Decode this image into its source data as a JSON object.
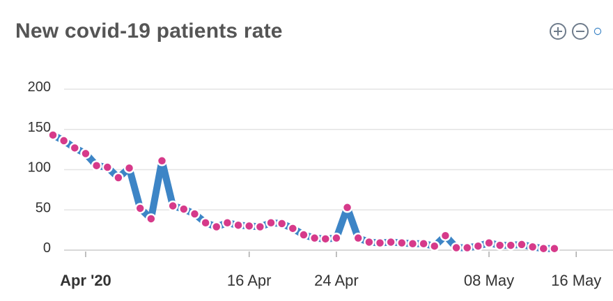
{
  "chart_data": {
    "type": "line",
    "title": "New covid-19 patients rate",
    "xlabel": "",
    "ylabel": "",
    "ylim": [
      0,
      200
    ],
    "y_ticks": [
      "0",
      "50",
      "100",
      "150",
      "200"
    ],
    "x_ticks": [
      "Apr '20",
      "16 Apr",
      "24 Apr",
      "08 May",
      "16 May"
    ],
    "grid": true,
    "legend": "none",
    "line_color": "#3d85c6",
    "marker_color": "#d63a8a",
    "x": [
      "2020-03-29",
      "2020-03-30",
      "2020-03-31",
      "2020-04-01",
      "2020-04-02",
      "2020-04-03",
      "2020-04-04",
      "2020-04-05",
      "2020-04-06",
      "2020-04-07",
      "2020-04-08",
      "2020-04-09",
      "2020-04-10",
      "2020-04-11",
      "2020-04-12",
      "2020-04-13",
      "2020-04-14",
      "2020-04-15",
      "2020-04-16",
      "2020-04-17",
      "2020-04-18",
      "2020-04-19",
      "2020-04-20",
      "2020-04-21",
      "2020-04-22",
      "2020-04-23",
      "2020-04-24",
      "2020-04-25",
      "2020-04-26",
      "2020-04-27",
      "2020-04-28",
      "2020-04-29",
      "2020-04-30",
      "2020-05-01",
      "2020-05-02",
      "2020-05-03",
      "2020-05-04",
      "2020-05-05",
      "2020-05-06",
      "2020-05-07",
      "2020-05-08",
      "2020-05-09",
      "2020-05-10",
      "2020-05-11",
      "2020-05-12",
      "2020-05-13",
      "2020-05-14"
    ],
    "series": [
      {
        "values": [
          143,
          136,
          127,
          120,
          105,
          103,
          90,
          102,
          52,
          39,
          111,
          55,
          51,
          45,
          34,
          29,
          34,
          31,
          30,
          29,
          34,
          33,
          27,
          19,
          15,
          14,
          15,
          53,
          15,
          10,
          9,
          10,
          9,
          8,
          8,
          5,
          18,
          3,
          3,
          5,
          9,
          6,
          6,
          7,
          4,
          2,
          2
        ]
      }
    ]
  },
  "toolbar": {
    "zoom_in_icon": "plus-circle-icon",
    "zoom_out_icon": "minus-circle-icon",
    "partial_icon_color": "#3d85c6"
  }
}
